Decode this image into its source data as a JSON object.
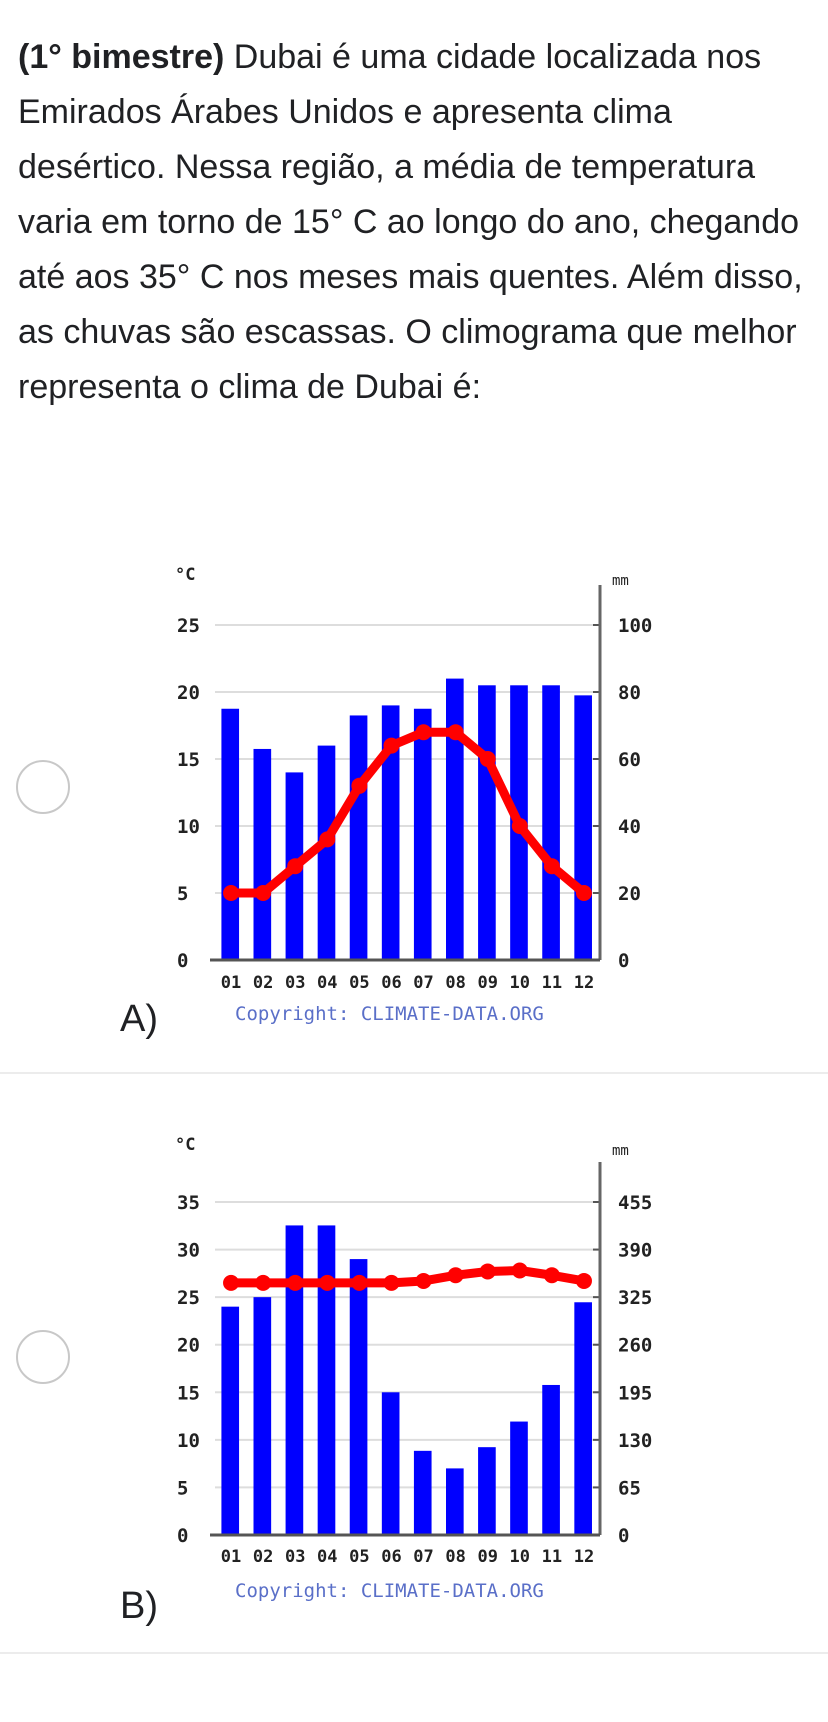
{
  "question": {
    "prefix": "(1° bimestre)",
    "text": " Dubai é uma cidade localizada nos Emirados Árabes Unidos e apresenta clima desértico. Nessa região, a média de temperatura varia em torno de 15° C ao longo do ano, chegando até aos 35° C nos meses mais quentes. Além disso, as chuvas são escassas. O climograma que melhor representa o clima de Dubai é:"
  },
  "options": [
    {
      "letter": "A)",
      "selected": false
    },
    {
      "letter": "B)",
      "selected": false
    }
  ],
  "colors": {
    "bars": "#0000ff",
    "line": "#ff0000",
    "copyright": "#5a6fc8",
    "axis": "#555555"
  },
  "chart_data": [
    {
      "type": "bar",
      "temp_unit": "°C",
      "precip_unit": "mm",
      "categories": [
        "01",
        "02",
        "03",
        "04",
        "05",
        "06",
        "07",
        "08",
        "09",
        "10",
        "11",
        "12"
      ],
      "temp_ticks": [
        0,
        5,
        10,
        15,
        20,
        25
      ],
      "precip_ticks": [
        0,
        20,
        40,
        60,
        80,
        100
      ],
      "temp_ylim": [
        0,
        25
      ],
      "precip_ylim": [
        0,
        100
      ],
      "series": [
        {
          "values": [
            75,
            63,
            56,
            64,
            73,
            76,
            75,
            84,
            82,
            82,
            82,
            79
          ]
        },
        {
          "values": [
            5,
            5,
            7,
            9,
            13,
            16,
            17,
            17,
            15,
            10,
            7,
            5
          ]
        }
      ],
      "copyright": "Copyright: CLIMATE-DATA.ORG"
    },
    {
      "type": "bar",
      "temp_unit": "°C",
      "precip_unit": "mm",
      "categories": [
        "01",
        "02",
        "03",
        "04",
        "05",
        "06",
        "07",
        "08",
        "09",
        "10",
        "11",
        "12"
      ],
      "temp_ticks": [
        0,
        5,
        10,
        15,
        20,
        25,
        30,
        35
      ],
      "precip_ticks": [
        0,
        65,
        130,
        195,
        260,
        325,
        390,
        455
      ],
      "temp_ylim": [
        0,
        35
      ],
      "precip_ylim": [
        0,
        455
      ],
      "series": [
        {
          "values": [
            312,
            325,
            423,
            423,
            377,
            195,
            115,
            91,
            120,
            155,
            205,
            318
          ]
        },
        {
          "values": [
            26.5,
            26.5,
            26.5,
            26.5,
            26.5,
            26.5,
            26.7,
            27.3,
            27.7,
            27.8,
            27.3,
            26.7
          ]
        }
      ],
      "copyright": "Copyright: CLIMATE-DATA.ORG"
    }
  ]
}
